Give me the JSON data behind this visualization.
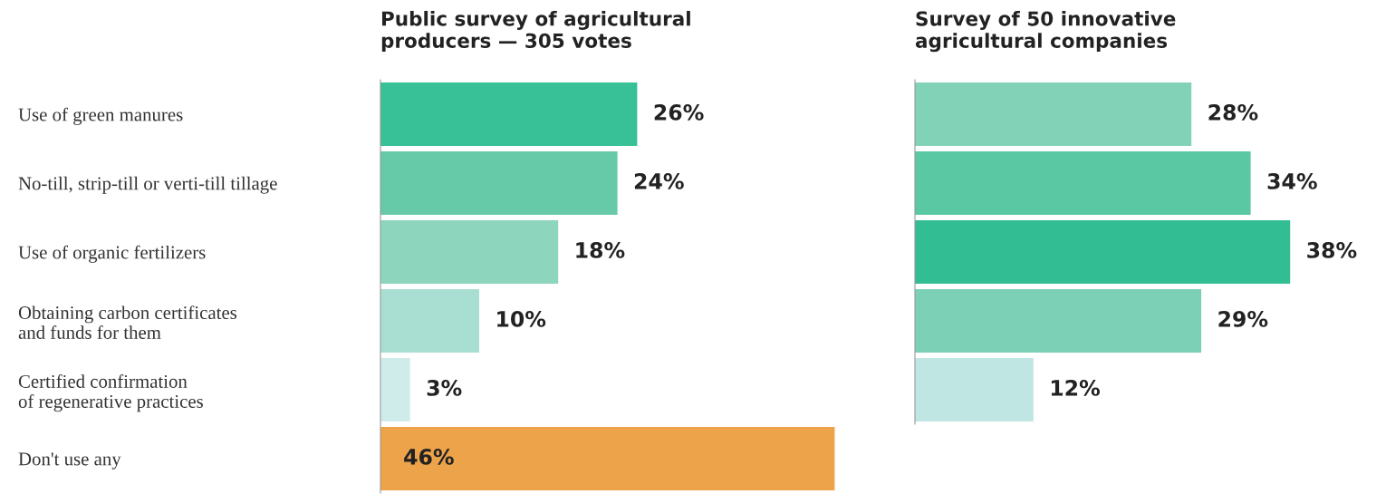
{
  "chart_data": [
    {
      "type": "bar",
      "orientation": "horizontal",
      "title": "Public survey of agricultural\nproducers — 305 votes",
      "tick_labels": "y",
      "categories": [
        "Use of green manures",
        "No-till, strip-till or verti-till tillage",
        "Use of organic fertilizers",
        "Obtaining carbon certificates\nand funds for them",
        "Certified confirmation\nof regenerative practices",
        "Don't use any"
      ],
      "values": [
        26,
        24,
        18,
        10,
        3,
        46
      ],
      "colors": [
        "#38c096",
        "#66caa9",
        "#8dd5bd",
        "#a9dfd2",
        "#cfeceb",
        "#eda34a"
      ],
      "value_labels": [
        "26%",
        "24%",
        "18%",
        "10%",
        "3%",
        "46%"
      ]
    },
    {
      "type": "bar",
      "orientation": "horizontal",
      "title": "Survey of 50 innovative\nagricultural companies",
      "tick_labels": false,
      "categories": [
        null,
        null,
        null,
        null,
        null
      ],
      "values": [
        28,
        34,
        38,
        29,
        12
      ],
      "colors": [
        "#82d2b8",
        "#5bc8a4",
        "#32bd92",
        "#7cd0b6",
        "#bfe6e3"
      ],
      "value_labels": [
        "28%",
        "34%",
        "38%",
        "29%",
        "12%"
      ]
    }
  ]
}
